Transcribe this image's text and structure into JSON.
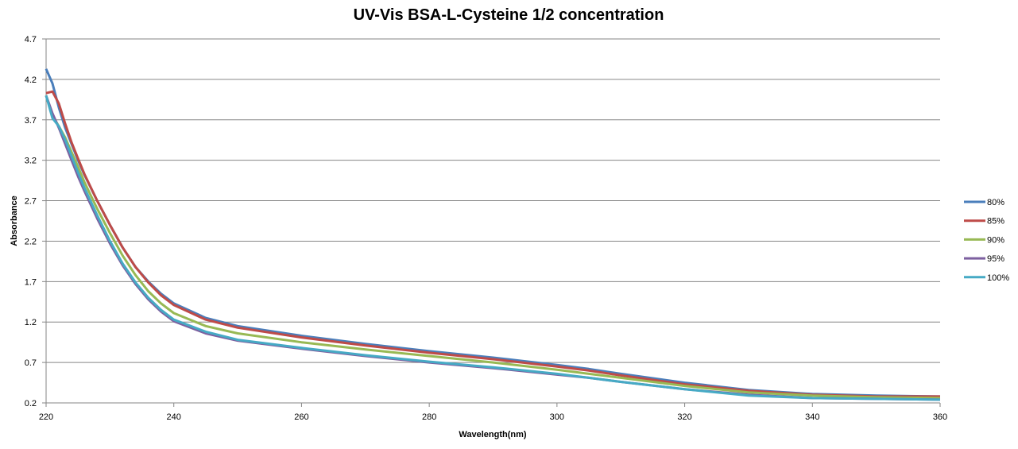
{
  "chart_data": {
    "type": "line",
    "title": "UV-Vis BSA-L-Cysteine 1/2 concentration",
    "xlabel": "Wavelength(nm)",
    "ylabel": "Absorbance",
    "xlim": [
      220,
      360
    ],
    "ylim": [
      0.2,
      4.7
    ],
    "xticks": [
      220,
      240,
      260,
      280,
      300,
      320,
      340,
      360
    ],
    "yticks": [
      0.2,
      0.7,
      1.2,
      1.7,
      2.2,
      2.7,
      3.2,
      3.7,
      4.2,
      4.7
    ],
    "grid": true,
    "legend_position": "right",
    "x": [
      220,
      221,
      222,
      223,
      224,
      225,
      226,
      228,
      230,
      232,
      234,
      236,
      238,
      240,
      245,
      250,
      260,
      270,
      280,
      290,
      300,
      305,
      310,
      320,
      330,
      340,
      350,
      360
    ],
    "series": [
      {
        "name": "80%",
        "color": "#4a7ebb",
        "values": [
          4.33,
          4.15,
          3.85,
          3.6,
          3.4,
          3.2,
          3.02,
          2.7,
          2.4,
          2.12,
          1.88,
          1.7,
          1.55,
          1.43,
          1.25,
          1.15,
          1.03,
          0.93,
          0.84,
          0.76,
          0.67,
          0.62,
          0.56,
          0.45,
          0.36,
          0.31,
          0.29,
          0.28
        ]
      },
      {
        "name": "85%",
        "color": "#be4b48",
        "values": [
          4.03,
          4.05,
          3.9,
          3.65,
          3.42,
          3.22,
          3.03,
          2.7,
          2.4,
          2.12,
          1.88,
          1.69,
          1.53,
          1.41,
          1.23,
          1.13,
          1.01,
          0.91,
          0.82,
          0.74,
          0.65,
          0.6,
          0.54,
          0.43,
          0.35,
          0.3,
          0.28,
          0.28
        ]
      },
      {
        "name": "90%",
        "color": "#98b954",
        "values": [
          4.0,
          3.75,
          3.62,
          3.48,
          3.3,
          3.12,
          2.93,
          2.6,
          2.3,
          2.02,
          1.78,
          1.58,
          1.43,
          1.31,
          1.15,
          1.06,
          0.95,
          0.86,
          0.78,
          0.7,
          0.61,
          0.56,
          0.51,
          0.41,
          0.33,
          0.29,
          0.27,
          0.26
        ]
      },
      {
        "name": "95%",
        "color": "#7d60a0",
        "values": [
          4.0,
          3.78,
          3.6,
          3.4,
          3.2,
          3.0,
          2.82,
          2.48,
          2.17,
          1.9,
          1.67,
          1.48,
          1.33,
          1.21,
          1.06,
          0.97,
          0.87,
          0.78,
          0.7,
          0.63,
          0.55,
          0.51,
          0.46,
          0.37,
          0.3,
          0.26,
          0.25,
          0.24
        ]
      },
      {
        "name": "100%",
        "color": "#46aac5",
        "values": [
          4.0,
          3.72,
          3.62,
          3.45,
          3.25,
          3.05,
          2.86,
          2.52,
          2.2,
          1.92,
          1.69,
          1.5,
          1.35,
          1.23,
          1.08,
          0.98,
          0.88,
          0.79,
          0.71,
          0.64,
          0.56,
          0.51,
          0.46,
          0.37,
          0.29,
          0.26,
          0.25,
          0.24
        ]
      }
    ]
  }
}
